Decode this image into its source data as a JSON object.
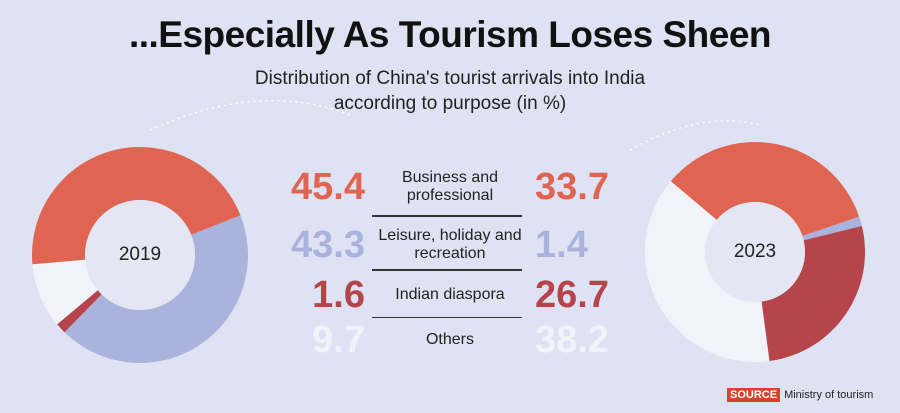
{
  "title": "...Especially As Tourism Loses Sheen",
  "subtitle": "Distribution of China's tourist arrivals into India according to purpose (in %)",
  "source": {
    "label": "SOURCE",
    "text": "Ministry of tourism"
  },
  "chart_data": [
    {
      "type": "donut",
      "title": "2019",
      "categories": [
        "Business and professional",
        "Leisure, holiday and recreation",
        "Indian diaspora",
        "Others"
      ],
      "values": [
        45.4,
        43.3,
        1.6,
        9.7
      ],
      "colors": [
        "#e06452",
        "#a9b3dc",
        "#b5454a",
        "#f2f3fa"
      ]
    },
    {
      "type": "donut",
      "title": "2023",
      "values": [
        33.7,
        1.4,
        26.7,
        38.2
      ],
      "colors": [
        "#e06452",
        "#a9b3dc",
        "#b5454a",
        "#f2f3fa"
      ]
    }
  ]
}
